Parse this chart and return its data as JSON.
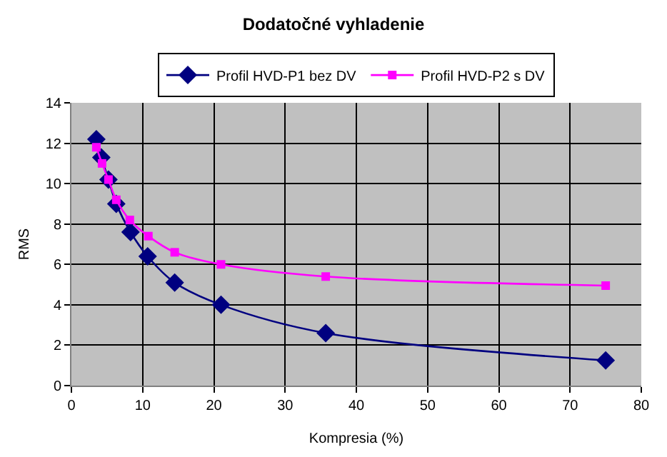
{
  "chart_data": {
    "type": "line",
    "title": "Dodatočné vyhladenie",
    "xlabel": "Kompresia (%)",
    "ylabel": "RMS",
    "xlim": [
      0,
      80
    ],
    "xticks": [
      0,
      10,
      20,
      30,
      40,
      50,
      60,
      70,
      80
    ],
    "ylim": [
      0,
      14
    ],
    "yticks": [
      0,
      2,
      4,
      6,
      8,
      10,
      12,
      14
    ],
    "grid": true,
    "legend": "top",
    "series": [
      {
        "name": "Profil HVD-P1 bez DV",
        "color": "#000080",
        "marker": "diamond",
        "x": [
          3.5,
          4.2,
          5.2,
          6.3,
          8.3,
          10.7,
          14.5,
          21,
          35.7,
          75
        ],
        "values": [
          12.2,
          11.3,
          10.2,
          9.0,
          7.6,
          6.4,
          5.1,
          4.0,
          2.6,
          1.25
        ]
      },
      {
        "name": "Profil HVD-P2 s DV",
        "color": "#ff00ff",
        "marker": "square",
        "x": [
          3.5,
          4.3,
          5.2,
          6.3,
          8.2,
          10.8,
          14.5,
          21,
          35.7,
          75
        ],
        "values": [
          11.8,
          11.0,
          10.2,
          9.2,
          8.2,
          7.4,
          6.6,
          6.0,
          5.4,
          4.95
        ]
      }
    ]
  }
}
